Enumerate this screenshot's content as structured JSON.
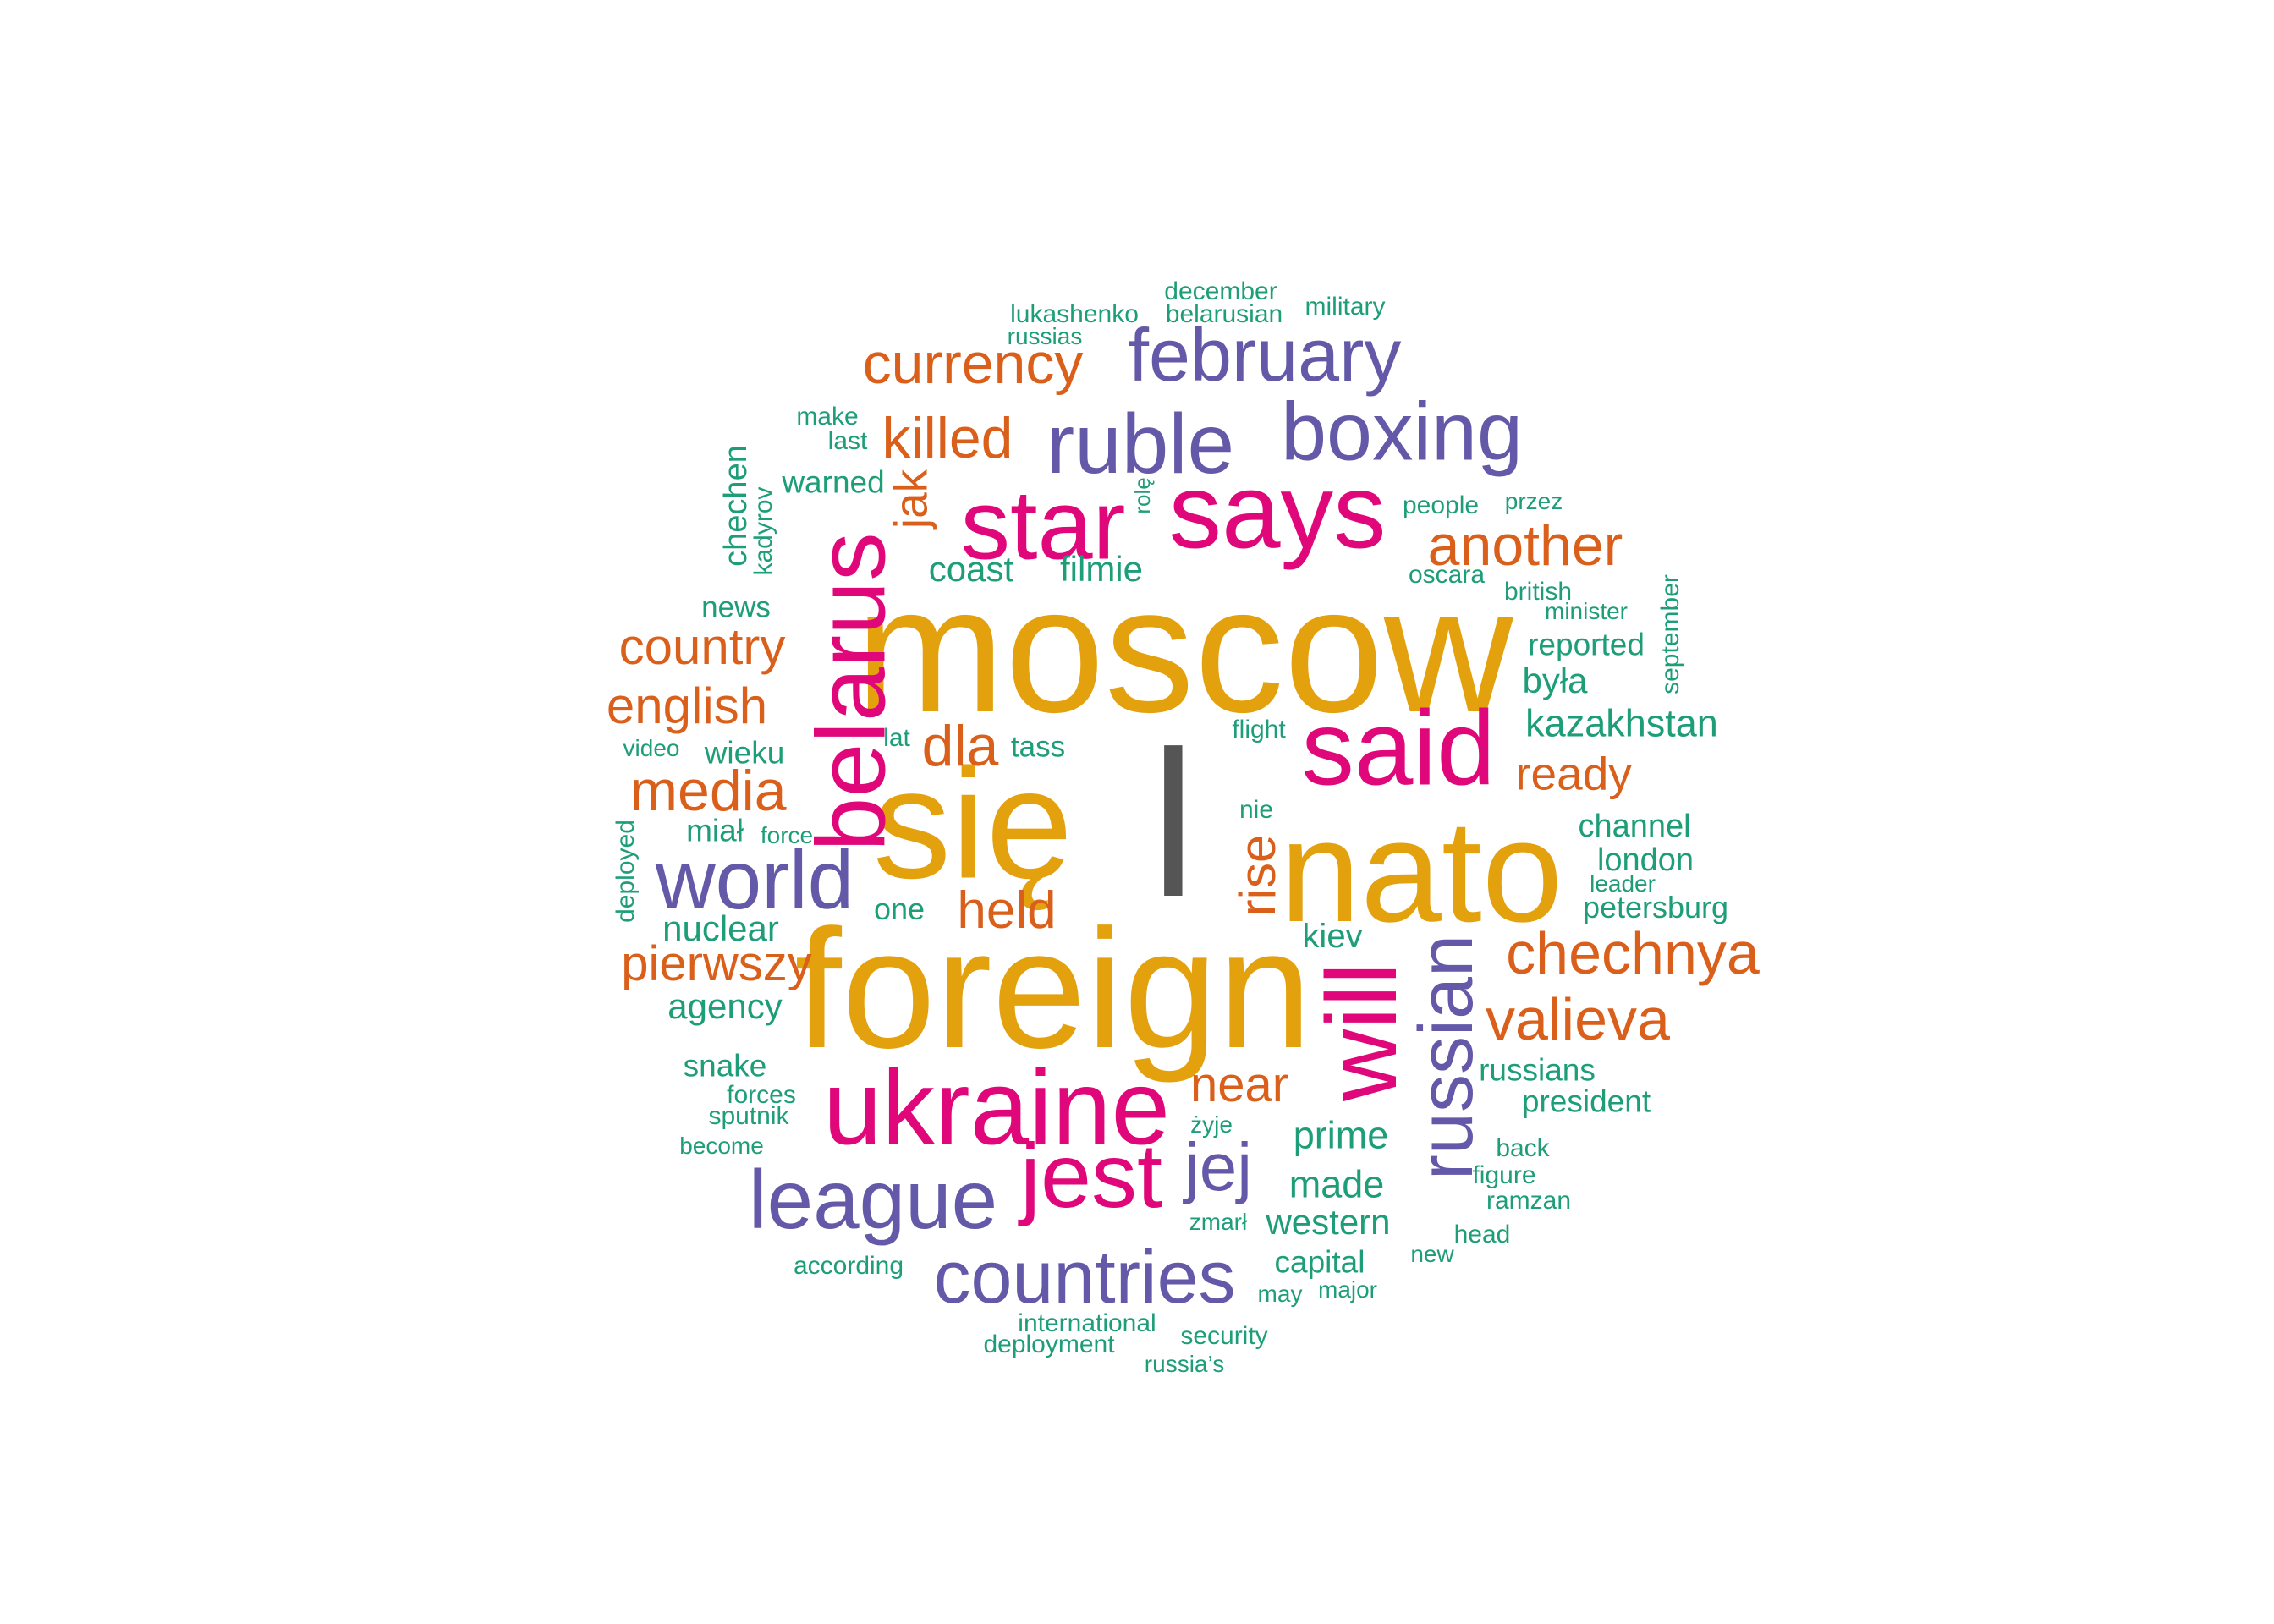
{
  "palette": {
    "gold": "#E3A10E",
    "magenta": "#E0077A",
    "purple": "#6459A8",
    "orange": "#D95F1A",
    "teal": "#1E9E78",
    "gray": "#555555"
  },
  "words": [
    {
      "text": "moscow",
      "color": "gold"
    },
    {
      "text": "foreign",
      "color": "gold"
    },
    {
      "text": "się",
      "color": "gold"
    },
    {
      "text": "nato",
      "color": "gold"
    },
    {
      "text": "–",
      "color": "gray"
    },
    {
      "text": "said",
      "color": "magenta"
    },
    {
      "text": "says",
      "color": "magenta"
    },
    {
      "text": "star",
      "color": "magenta"
    },
    {
      "text": "belarus",
      "color": "magenta"
    },
    {
      "text": "ukraine",
      "color": "magenta"
    },
    {
      "text": "jest",
      "color": "magenta"
    },
    {
      "text": "will",
      "color": "magenta"
    },
    {
      "text": "ruble",
      "color": "purple"
    },
    {
      "text": "boxing",
      "color": "purple"
    },
    {
      "text": "february",
      "color": "purple"
    },
    {
      "text": "world",
      "color": "purple"
    },
    {
      "text": "league",
      "color": "purple"
    },
    {
      "text": "countries",
      "color": "purple"
    },
    {
      "text": "jej",
      "color": "purple"
    },
    {
      "text": "russian",
      "color": "purple"
    },
    {
      "text": "currency",
      "color": "orange"
    },
    {
      "text": "killed",
      "color": "orange"
    },
    {
      "text": "another",
      "color": "orange"
    },
    {
      "text": "country",
      "color": "orange"
    },
    {
      "text": "english",
      "color": "orange"
    },
    {
      "text": "media",
      "color": "orange"
    },
    {
      "text": "dla",
      "color": "orange"
    },
    {
      "text": "held",
      "color": "orange"
    },
    {
      "text": "pierwszy",
      "color": "orange"
    },
    {
      "text": "chechnya",
      "color": "orange"
    },
    {
      "text": "valieva",
      "color": "orange"
    },
    {
      "text": "near",
      "color": "orange"
    },
    {
      "text": "ready",
      "color": "orange"
    },
    {
      "text": "rise",
      "color": "orange"
    },
    {
      "text": "jak",
      "color": "orange"
    },
    {
      "text": "december",
      "color": "teal"
    },
    {
      "text": "lukashenko",
      "color": "teal"
    },
    {
      "text": "belarusian",
      "color": "teal"
    },
    {
      "text": "military",
      "color": "teal"
    },
    {
      "text": "russias",
      "color": "teal"
    },
    {
      "text": "make",
      "color": "teal"
    },
    {
      "text": "last",
      "color": "teal"
    },
    {
      "text": "warned",
      "color": "teal"
    },
    {
      "text": "chechen",
      "color": "teal"
    },
    {
      "text": "kadyrov",
      "color": "teal"
    },
    {
      "text": "rolę",
      "color": "teal"
    },
    {
      "text": "people",
      "color": "teal"
    },
    {
      "text": "przez",
      "color": "teal"
    },
    {
      "text": "coast",
      "color": "teal"
    },
    {
      "text": "filmie",
      "color": "teal"
    },
    {
      "text": "oscara",
      "color": "teal"
    },
    {
      "text": "british",
      "color": "teal"
    },
    {
      "text": "minister",
      "color": "teal"
    },
    {
      "text": "september",
      "color": "teal"
    },
    {
      "text": "news",
      "color": "teal"
    },
    {
      "text": "reported",
      "color": "teal"
    },
    {
      "text": "była",
      "color": "teal"
    },
    {
      "text": "kazakhstan",
      "color": "teal"
    },
    {
      "text": "flight",
      "color": "teal"
    },
    {
      "text": "lat",
      "color": "teal"
    },
    {
      "text": "tass",
      "color": "teal"
    },
    {
      "text": "video",
      "color": "teal"
    },
    {
      "text": "wieku",
      "color": "teal"
    },
    {
      "text": "nie",
      "color": "teal"
    },
    {
      "text": "channel",
      "color": "teal"
    },
    {
      "text": "miał",
      "color": "teal"
    },
    {
      "text": "force",
      "color": "teal"
    },
    {
      "text": "london",
      "color": "teal"
    },
    {
      "text": "deployed",
      "color": "teal"
    },
    {
      "text": "leader",
      "color": "teal"
    },
    {
      "text": "petersburg",
      "color": "teal"
    },
    {
      "text": "one",
      "color": "teal"
    },
    {
      "text": "nuclear",
      "color": "teal"
    },
    {
      "text": "kiev",
      "color": "teal"
    },
    {
      "text": "agency",
      "color": "teal"
    },
    {
      "text": "snake",
      "color": "teal"
    },
    {
      "text": "russians",
      "color": "teal"
    },
    {
      "text": "forces",
      "color": "teal"
    },
    {
      "text": "president",
      "color": "teal"
    },
    {
      "text": "sputnik",
      "color": "teal"
    },
    {
      "text": "żyje",
      "color": "teal"
    },
    {
      "text": "prime",
      "color": "teal"
    },
    {
      "text": "become",
      "color": "teal"
    },
    {
      "text": "back",
      "color": "teal"
    },
    {
      "text": "figure",
      "color": "teal"
    },
    {
      "text": "made",
      "color": "teal"
    },
    {
      "text": "ramzan",
      "color": "teal"
    },
    {
      "text": "zmarł",
      "color": "teal"
    },
    {
      "text": "western",
      "color": "teal"
    },
    {
      "text": "head",
      "color": "teal"
    },
    {
      "text": "new",
      "color": "teal"
    },
    {
      "text": "according",
      "color": "teal"
    },
    {
      "text": "capital",
      "color": "teal"
    },
    {
      "text": "may",
      "color": "teal"
    },
    {
      "text": "major",
      "color": "teal"
    },
    {
      "text": "international",
      "color": "teal"
    },
    {
      "text": "security",
      "color": "teal"
    },
    {
      "text": "deployment",
      "color": "teal"
    },
    {
      "text": "russia’s",
      "color": "teal"
    }
  ]
}
